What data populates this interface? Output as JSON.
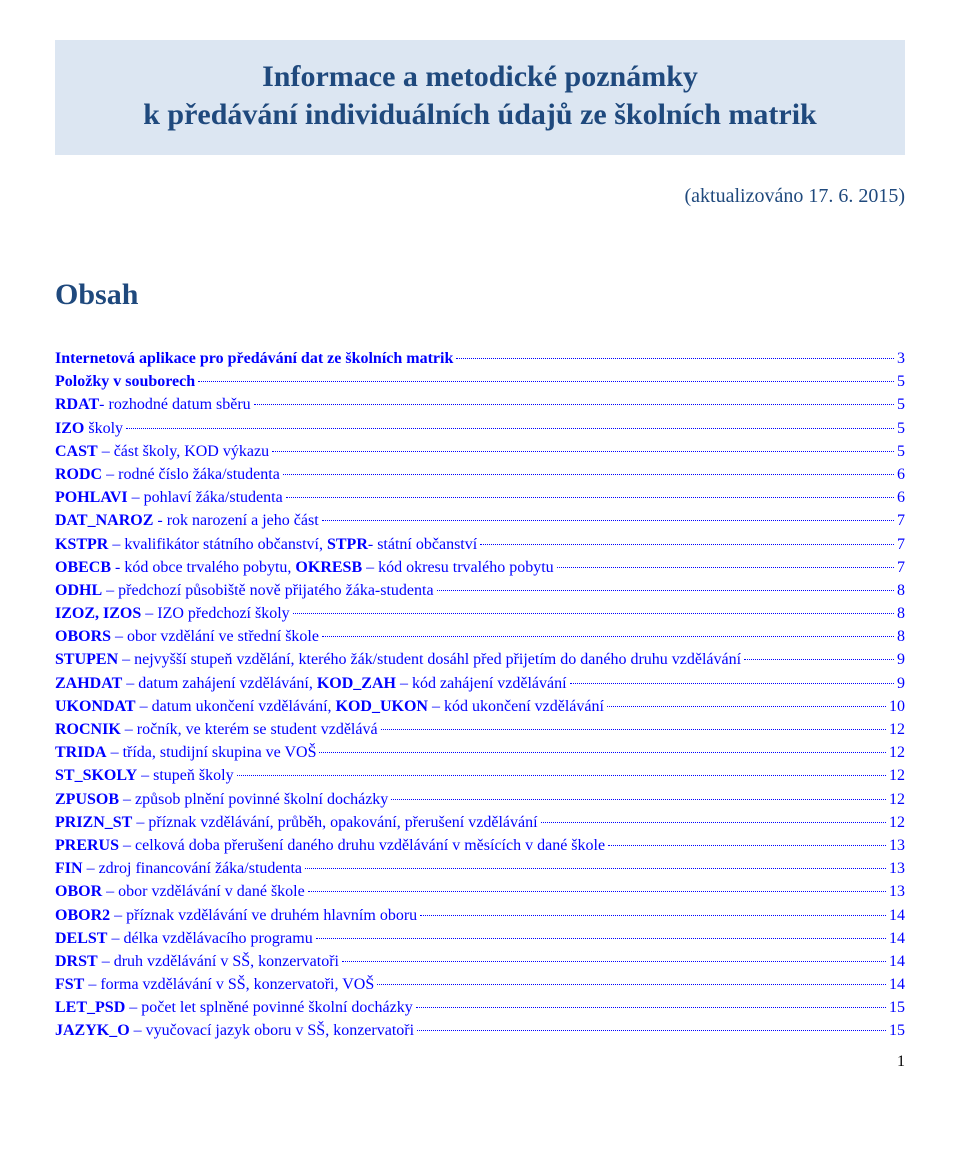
{
  "title_line1": "Informace a metodické poznámky",
  "title_line2": "k předávání individuálních údajů ze školních matrik",
  "updated": "(aktualizováno 17. 6. 2015)",
  "toc_heading": "Obsah",
  "page_number": "1",
  "toc": [
    {
      "bold": "Internetová aplikace pro předávání dat ze školních matrik",
      "rest": "",
      "page": "3"
    },
    {
      "bold": "Položky v souborech",
      "rest": "",
      "page": "5"
    },
    {
      "bold": "RDAT",
      "rest": "- rozhodné datum sběru",
      "page": "5"
    },
    {
      "bold": "IZO",
      "rest": " školy",
      "page": "5"
    },
    {
      "bold": "CAST",
      "rest": " – část školy, KOD výkazu",
      "page": "5"
    },
    {
      "bold": "RODC",
      "rest": " – rodné číslo žáka/studenta",
      "page": "6"
    },
    {
      "bold": "POHLAVI",
      "rest": " – pohlaví žáka/studenta",
      "page": "6"
    },
    {
      "bold": "DAT_NAROZ",
      "rest": " - rok narození a jeho část",
      "page": "7"
    },
    {
      "bold": "KSTPR – kvalifikátor státního občanství, STPR- státní občanství",
      "rest": "",
      "page": "7",
      "halfrest": true
    },
    {
      "bold": "OBECB",
      "rest": " - kód obce trvalého pobytu, ",
      "bold2": "OKRESB",
      "rest2": " – kód okresu trvalého pobytu",
      "page": "7"
    },
    {
      "bold": "ODHL",
      "rest": " – předchozí působiště nově přijatého žáka-studenta",
      "page": "8"
    },
    {
      "bold": "IZOZ, IZOS",
      "rest": " – IZO předchozí školy",
      "page": "8"
    },
    {
      "bold": "OBORS",
      "rest": " – obor vzdělání ve střední škole",
      "page": "8"
    },
    {
      "bold": "STUPEN",
      "rest": " – nejvyšší stupeň vzdělání, kterého žák/student dosáhl před přijetím do daného druhu vzdělávání",
      "page": "9"
    },
    {
      "bold": "ZAHDAT",
      "rest": " – datum zahájení vzdělávání, ",
      "bold2": "KOD_ZAH",
      "rest2": " – kód zahájení vzdělávání",
      "page": "9"
    },
    {
      "bold": "UKONDAT",
      "rest": " – datum ukončení vzdělávání, ",
      "bold2": "KOD_UKON",
      "rest2": " – kód ukončení vzdělávání",
      "page": "10"
    },
    {
      "bold": "ROCNIK",
      "rest": " – ročník, ve kterém se student vzdělává",
      "page": "12"
    },
    {
      "bold": "TRIDA",
      "rest": " – třída, studijní skupina ve VOŠ",
      "page": "12"
    },
    {
      "bold": "ST_SKOLY",
      "rest": " – stupeň školy",
      "page": "12"
    },
    {
      "bold": "ZPUSOB",
      "rest": " – způsob plnění povinné školní docházky",
      "page": "12"
    },
    {
      "bold": "PRIZN_ST",
      "rest": " – příznak vzdělávání, průběh, opakování, přerušení vzdělávání",
      "page": "12"
    },
    {
      "bold": "PRERUS",
      "rest": " – celková doba přerušení daného druhu vzdělávání v měsících v dané škole",
      "page": "13"
    },
    {
      "bold": "FIN",
      "rest": " – zdroj financování žáka/studenta",
      "page": "13"
    },
    {
      "bold": "OBOR",
      "rest": " – obor vzdělávání v dané škole",
      "page": "13"
    },
    {
      "bold": "OBOR2",
      "rest": " – příznak vzdělávání ve druhém hlavním oboru",
      "page": "14"
    },
    {
      "bold": "DELST",
      "rest": " – délka vzdělávacího programu",
      "page": "14"
    },
    {
      "bold": "DRST",
      "rest": " – druh vzdělávání v SŠ, konzervatoři",
      "page": "14"
    },
    {
      "bold": "FST",
      "rest": " – forma vzdělávání v SŠ, konzervatoři, VOŠ",
      "page": "14"
    },
    {
      "bold": "LET_PSD",
      "rest": " – počet let splněné povinné školní docházky",
      "page": "15"
    },
    {
      "bold": "JAZYK_O",
      "rest": " – vyučovací jazyk oboru v SŠ, konzervatoři",
      "page": "15"
    }
  ]
}
